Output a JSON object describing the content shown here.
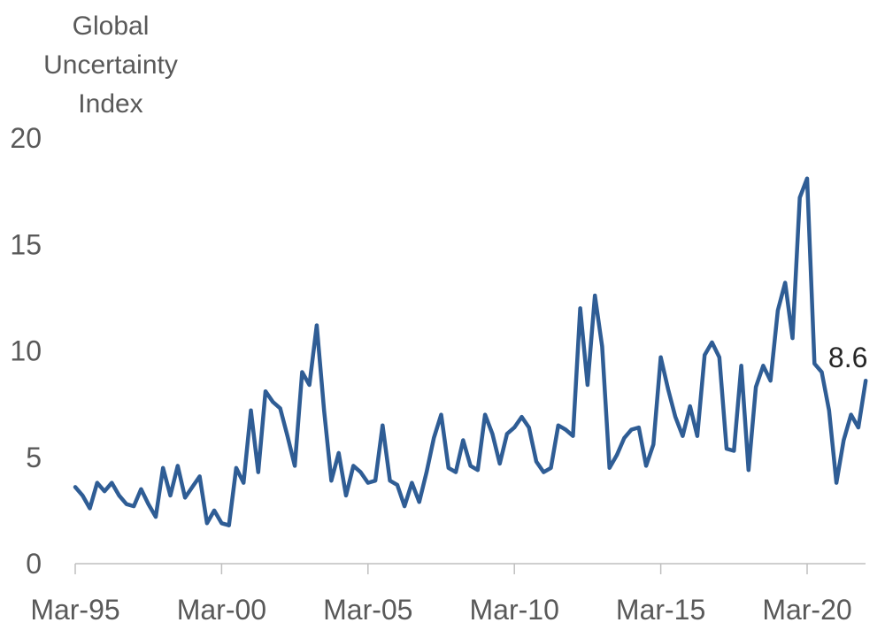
{
  "chart_data": {
    "type": "line",
    "title": "",
    "ylabel_lines": [
      "Global",
      "Uncertainty",
      "Index"
    ],
    "xlabel": "",
    "ylim": [
      0,
      20
    ],
    "y_ticks": [
      "0",
      "5",
      "10",
      "15",
      "20"
    ],
    "x_ticks": [
      "Mar-95",
      "Mar-00",
      "Mar-05",
      "Mar-10",
      "Mar-15",
      "Mar-20"
    ],
    "grid": false,
    "line_color": "#2f5d95",
    "annotation": {
      "text": "8.6",
      "quarter": "Mar-22"
    },
    "series": [
      {
        "frequency": "quarterly",
        "start": "Mar-95",
        "values": [
          3.6,
          3.2,
          2.6,
          3.8,
          3.4,
          3.8,
          3.2,
          2.8,
          2.7,
          3.5,
          2.8,
          2.2,
          4.5,
          3.2,
          4.6,
          3.1,
          3.6,
          4.1,
          1.9,
          2.5,
          1.9,
          1.8,
          4.5,
          3.8,
          7.2,
          4.3,
          8.1,
          7.6,
          7.3,
          6.0,
          4.6,
          9.0,
          8.4,
          11.2,
          7.2,
          3.9,
          5.2,
          3.2,
          4.6,
          4.3,
          3.8,
          3.9,
          6.5,
          3.9,
          3.7,
          2.7,
          3.8,
          2.9,
          4.3,
          5.9,
          7.0,
          4.5,
          4.3,
          5.8,
          4.6,
          4.4,
          7.0,
          6.1,
          4.7,
          6.1,
          6.4,
          6.9,
          6.4,
          4.8,
          4.3,
          4.5,
          6.5,
          6.3,
          6.0,
          12.0,
          8.4,
          12.6,
          10.2,
          4.5,
          5.1,
          5.9,
          6.3,
          6.4,
          4.6,
          5.6,
          9.7,
          8.2,
          6.9,
          6.0,
          7.4,
          6.0,
          9.8,
          10.4,
          9.7,
          5.4,
          5.3,
          9.3,
          4.4,
          8.3,
          9.3,
          8.6,
          11.9,
          13.2,
          10.6,
          17.2,
          18.1,
          9.4,
          9.0,
          7.2,
          3.8,
          5.8,
          7.0,
          6.4,
          8.6
        ]
      }
    ]
  }
}
